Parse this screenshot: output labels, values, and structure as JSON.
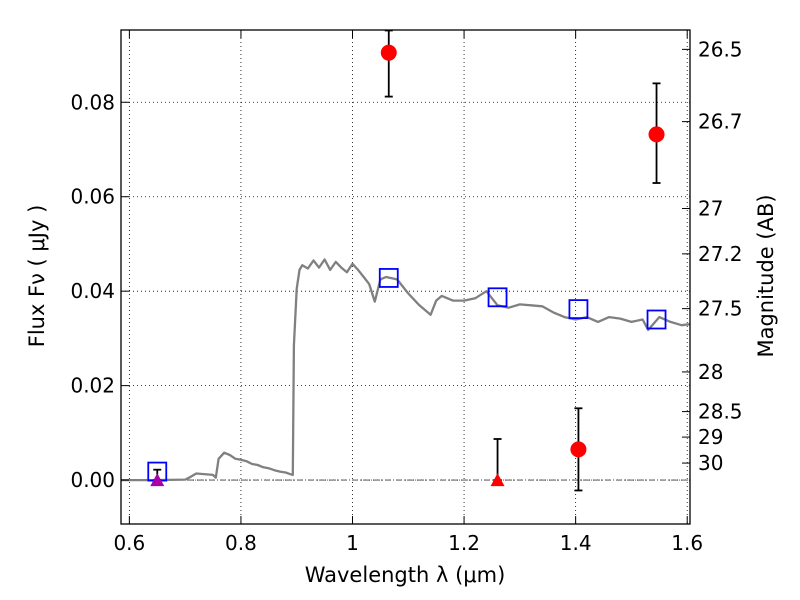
{
  "chart_data": {
    "type": "scatter",
    "xlabel": "Wavelength  λ (μm)",
    "ylabel": "Flux  Fν ( μJy )",
    "y2label": "Magnitude (AB)",
    "xlim": [
      0.585,
      1.605
    ],
    "ylim": [
      -0.0093,
      0.0953
    ],
    "x_ticks": [
      0.6,
      0.8,
      1.0,
      1.2,
      1.4,
      1.6
    ],
    "x_tick_labels": [
      "0.6",
      "0.8",
      "1",
      "1.2",
      "1.4",
      "1.6"
    ],
    "y_ticks": [
      0.0,
      0.02,
      0.04,
      0.06,
      0.08
    ],
    "y_tick_labels": [
      "0.00",
      "0.02",
      "0.04",
      "0.06",
      "0.08"
    ],
    "y2_ticks": [
      {
        "label": "26.5",
        "flux": 0.0912
      },
      {
        "label": "26.7",
        "flux": 0.0759
      },
      {
        "label": "27",
        "flux": 0.0575
      },
      {
        "label": "27.2",
        "flux": 0.0479
      },
      {
        "label": "27.5",
        "flux": 0.0363
      },
      {
        "label": "28",
        "flux": 0.0229
      },
      {
        "label": "28.5",
        "flux": 0.0145
      },
      {
        "label": "29",
        "flux": 0.0091
      },
      {
        "label": "30",
        "flux": 0.0036
      }
    ],
    "grid": true,
    "zero_line": 0.0,
    "colors": {
      "model": "#808080",
      "observed": "#ff0000",
      "model_mag": "#0000ff",
      "triangle_red": "#ff0000",
      "triangle_magenta": "#aa00aa"
    },
    "model_spectrum": {
      "name": "",
      "x": [
        0.585,
        0.64,
        0.7,
        0.71,
        0.72,
        0.75,
        0.755,
        0.76,
        0.77,
        0.78,
        0.79,
        0.8,
        0.81,
        0.82,
        0.83,
        0.84,
        0.85,
        0.86,
        0.87,
        0.88,
        0.89,
        0.893,
        0.895,
        0.9,
        0.905,
        0.91,
        0.92,
        0.93,
        0.94,
        0.95,
        0.96,
        0.97,
        0.98,
        0.99,
        1.0,
        1.01,
        1.02,
        1.03,
        1.04,
        1.05,
        1.06,
        1.08,
        1.1,
        1.12,
        1.14,
        1.15,
        1.16,
        1.18,
        1.2,
        1.22,
        1.24,
        1.26,
        1.28,
        1.3,
        1.32,
        1.34,
        1.36,
        1.38,
        1.4,
        1.42,
        1.44,
        1.46,
        1.48,
        1.5,
        1.52,
        1.53,
        1.55,
        1.57,
        1.59,
        1.605
      ],
      "y": [
        0.0,
        0.0,
        0.0001,
        0.0007,
        0.0014,
        0.0011,
        0.0005,
        0.0045,
        0.0058,
        0.0053,
        0.0045,
        0.0043,
        0.004,
        0.0034,
        0.0032,
        0.0027,
        0.0025,
        0.0021,
        0.0018,
        0.0016,
        0.0012,
        0.0011,
        0.0285,
        0.0405,
        0.0445,
        0.0455,
        0.0448,
        0.0465,
        0.045,
        0.0467,
        0.0445,
        0.0462,
        0.045,
        0.044,
        0.0458,
        0.0445,
        0.043,
        0.0415,
        0.0378,
        0.0425,
        0.043,
        0.0425,
        0.0395,
        0.037,
        0.035,
        0.038,
        0.039,
        0.038,
        0.038,
        0.0385,
        0.04,
        0.037,
        0.0365,
        0.0372,
        0.037,
        0.0368,
        0.0355,
        0.0345,
        0.034,
        0.0345,
        0.0335,
        0.0345,
        0.0342,
        0.0335,
        0.034,
        0.0318,
        0.0345,
        0.0335,
        0.0328,
        0.033
      ]
    },
    "model_magnitudes": {
      "marker": "open-square",
      "x": [
        0.65,
        1.065,
        1.26,
        1.405,
        1.545
      ],
      "y": [
        0.0018,
        0.0428,
        0.0387,
        0.0362,
        0.034
      ]
    },
    "detections": {
      "marker": "filled-circle",
      "x": [
        1.065,
        1.405,
        1.545
      ],
      "y": [
        0.0905,
        0.0065,
        0.0732
      ],
      "err_low": [
        0.0093,
        0.0087,
        0.0103
      ],
      "err_high": [
        0.0047,
        0.0087,
        0.0108
      ]
    },
    "upper_limits": {
      "marker": "filled-triangle",
      "x": [
        0.65,
        1.26
      ],
      "y": [
        0.0,
        0.0
      ],
      "err_low": [
        0.0,
        0.0
      ],
      "err_high": [
        0.0022,
        0.0087
      ],
      "marker_colors": [
        "#aa00aa",
        "#ff0000"
      ]
    }
  }
}
